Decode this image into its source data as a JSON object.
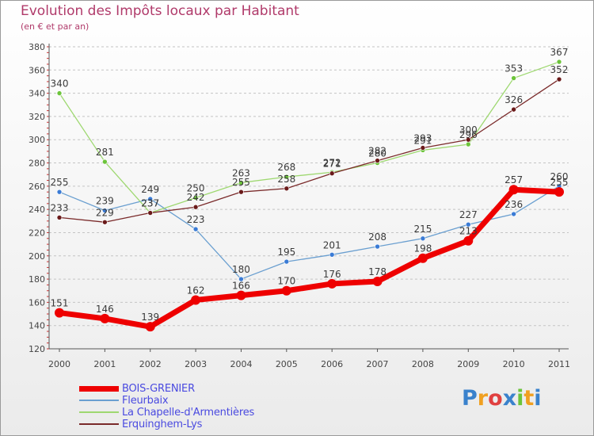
{
  "header": {
    "title": "Evolution des Impôts locaux par Habitant",
    "subtitle": "(en € et par an)"
  },
  "logo": {
    "text": "Proxiti",
    "letters": [
      "P",
      "r",
      "o",
      "x",
      "i",
      "t",
      "i"
    ]
  },
  "chart_data": {
    "type": "line",
    "title": "Evolution des Impôts locaux par Habitant",
    "subtitle": "(en € et par an)",
    "xlabel": "",
    "ylabel": "",
    "x": [
      "2000",
      "2001",
      "2002",
      "2003",
      "2004",
      "2005",
      "2006",
      "2007",
      "2008",
      "2009",
      "2010",
      "2011"
    ],
    "ylim": [
      120,
      380
    ],
    "yticks": [
      120,
      140,
      160,
      180,
      200,
      220,
      240,
      260,
      280,
      300,
      320,
      340,
      360,
      380
    ],
    "grid": "horizontal-dashed",
    "legend_position": "bottom-left",
    "series": [
      {
        "name": "Fleurbaix",
        "color": "#6a9fd0",
        "marker": "#3a7bd5",
        "values": [
          255,
          239,
          249,
          223,
          180,
          195,
          201,
          208,
          215,
          227,
          236,
          260
        ],
        "labels": [
          "255",
          "239",
          "249",
          "223",
          "180",
          "195",
          "201",
          "208",
          "215",
          "227",
          "236",
          "260"
        ]
      },
      {
        "name": "La Chapelle-d'Armentières",
        "color": "#9ed870",
        "marker": "#6cc43a",
        "values": [
          340,
          281,
          237,
          250,
          263,
          268,
          272,
          280,
          291,
          296,
          353,
          367
        ],
        "labels": [
          "340",
          "281",
          "237",
          "250",
          "263",
          "268",
          "272",
          "280",
          "291",
          "296",
          "353",
          "367"
        ]
      },
      {
        "name": "Erquinghem-Lys",
        "color": "#7a2a2a",
        "marker": "#6a1a1a",
        "values": [
          233,
          229,
          237,
          242,
          255,
          258,
          271,
          282,
          293,
          300,
          326,
          352
        ],
        "labels": [
          "233",
          "229",
          "237",
          "242",
          "255",
          "258",
          "271",
          "282",
          "293",
          "300",
          "326",
          "352"
        ]
      },
      {
        "name": "BOIS-GRENIER",
        "color": "#ee0000",
        "marker": "#ee0000",
        "values": [
          151,
          146,
          139,
          162,
          166,
          170,
          176,
          178,
          198,
          213,
          257,
          255
        ],
        "labels": [
          "151",
          "146",
          "139",
          "162",
          "166",
          "170",
          "176",
          "178",
          "198",
          "213",
          "257",
          "255"
        ]
      }
    ],
    "legend": [
      "BOIS-GRENIER",
      "Fleurbaix",
      "La Chapelle-d'Armentières",
      "Erquinghem-Lys"
    ]
  }
}
